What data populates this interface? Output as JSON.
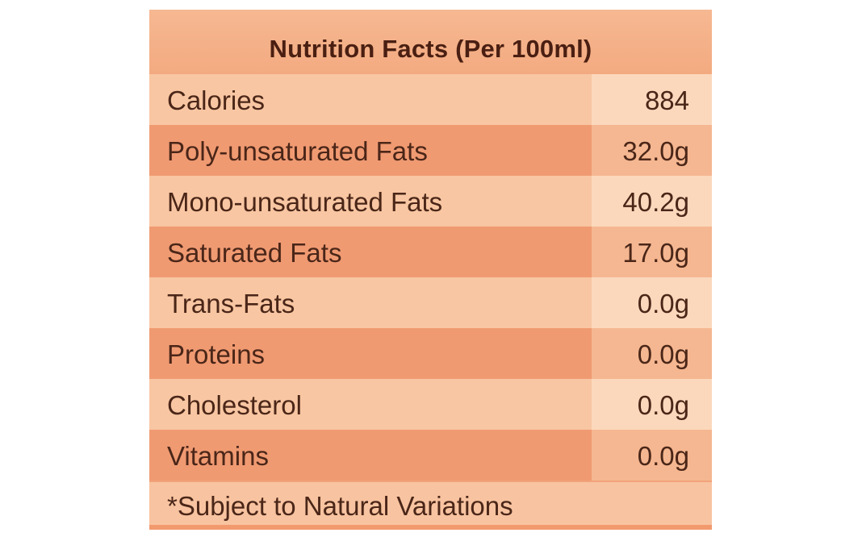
{
  "label": {
    "title": "Nutrition Facts (Per 100ml)",
    "rows": [
      {
        "name": "Calories",
        "value": "884"
      },
      {
        "name": "Poly-unsaturated Fats",
        "value": "32.0g"
      },
      {
        "name": "Mono-unsaturated Fats",
        "value": "40.2g"
      },
      {
        "name": "Saturated Fats",
        "value": "17.0g"
      },
      {
        "name": "Trans-Fats",
        "value": "0.0g"
      },
      {
        "name": "Proteins",
        "value": "0.0g"
      },
      {
        "name": "Cholesterol",
        "value": "0.0g"
      },
      {
        "name": "Vitamins",
        "value": "0.0g"
      }
    ],
    "footnote": "*Subject to Natural Variations"
  },
  "colors": {
    "panel": "#f2a37a",
    "row_light": "#f8c6a2",
    "row_dark": "#f09a72",
    "text": "#4a2618"
  }
}
